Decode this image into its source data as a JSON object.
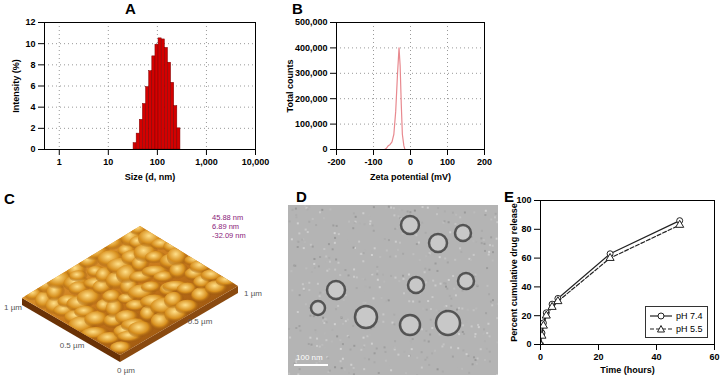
{
  "chart_data": [
    {
      "type": "bar",
      "title": "A",
      "x_label": "Size (d, nm)",
      "y_label": "Intensity (%)",
      "bins": [
        32.7,
        37.8,
        43.8,
        50.7,
        58.8,
        68.1,
        78.8,
        91.3,
        105.7,
        122.4,
        141.8,
        164.2,
        190.1,
        220.2,
        255.0,
        295.3
      ],
      "values": [
        0.6,
        1.5,
        2.8,
        4.3,
        5.9,
        7.4,
        8.8,
        9.9,
        10.5,
        10.4,
        9.6,
        8.2,
        6.3,
        4.1,
        2.0
      ],
      "color": "#d40000",
      "log": "x",
      "grid": true,
      "xlim": [
        0.5,
        10000
      ],
      "xticks": [
        1,
        10,
        100,
        {
          "value": 1000,
          "label": "1,000"
        },
        {
          "value": 10000,
          "label": "10,000"
        }
      ],
      "ylim": [
        0,
        12
      ],
      "yticks": [
        0,
        2,
        4,
        6,
        8,
        10,
        12
      ]
    },
    {
      "type": "line",
      "title": "B",
      "x_label": "Zeta potential (mV)",
      "y_label": "Total counts",
      "x": [
        -70,
        -65,
        -60,
        -55,
        -50,
        -45,
        -40,
        -35,
        -31,
        -28,
        -25,
        -22,
        -18,
        -15
      ],
      "values": [
        0,
        5000,
        15000,
        20000,
        30000,
        60000,
        150000,
        300000,
        400000,
        330000,
        180000,
        60000,
        15000,
        0
      ],
      "color": "#e8898f",
      "grid": true,
      "xlim": [
        -200,
        200
      ],
      "xticks": [
        -200,
        -100,
        0,
        100,
        200
      ],
      "ylim": [
        0,
        500000
      ],
      "yticks": [
        0,
        {
          "value": 100000,
          "label": "100,000"
        },
        {
          "value": 200000,
          "label": "200,000"
        },
        {
          "value": 300000,
          "label": "300,000"
        },
        {
          "value": 400000,
          "label": "400,000"
        },
        {
          "value": 500000,
          "label": "500,000"
        }
      ]
    },
    {
      "type": "image",
      "title": "C",
      "axis_labels": [
        "1 µm",
        "0.5 µm",
        "0 µm",
        "0.5 µm",
        "1 µm"
      ],
      "scale_labels": [
        "45.88 nm",
        "6.89 nm",
        "-32.09 nm"
      ]
    },
    {
      "type": "image",
      "title": "D",
      "scale_bar": "100 nm"
    },
    {
      "type": "line",
      "title": "E",
      "x_label": "Time (hours)",
      "y_label": "Percent cumulative drug release",
      "x": [
        0,
        0.5,
        1,
        2,
        4,
        6,
        24,
        48
      ],
      "series": [
        {
          "name": "pH 7.4",
          "color": "#222222",
          "marker": "circle",
          "line_style": "solid",
          "values": [
            0,
            8,
            15,
            22,
            28,
            32,
            63,
            86
          ]
        },
        {
          "name": "pH 5.5",
          "color": "#222222",
          "marker": "triangle",
          "line_style": "dashed",
          "values": [
            0,
            6,
            13,
            20,
            26,
            30,
            60,
            83
          ]
        }
      ],
      "legend": "bottom-right",
      "grid": false,
      "xlim": [
        0,
        60
      ],
      "xticks": [
        0,
        20,
        40,
        60
      ],
      "ylim": [
        0,
        100
      ],
      "yticks": [
        0,
        20,
        40,
        60,
        80,
        100
      ]
    }
  ]
}
